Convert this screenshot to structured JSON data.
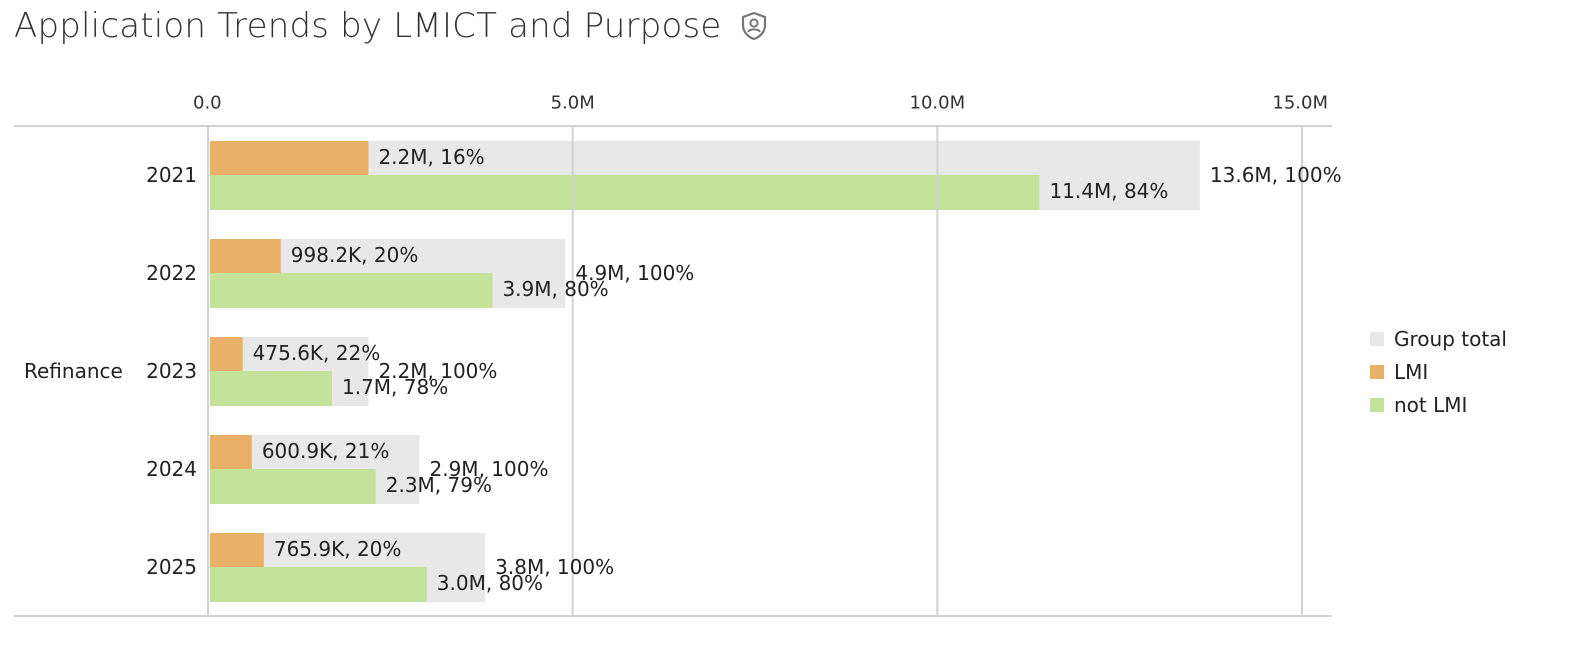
{
  "title": "Application Trends by LMICT and Purpose",
  "chart_data": {
    "type": "bar",
    "orientation": "horizontal",
    "group": "Refinance",
    "categories": [
      "2021",
      "2022",
      "2023",
      "2024",
      "2025"
    ],
    "xlim": [
      0,
      15000000
    ],
    "ticks": [
      0,
      5000000,
      10000000,
      15000000
    ],
    "tick_labels": [
      "0.0",
      "5.0M",
      "10.0M",
      "15.0M"
    ],
    "grid": true,
    "legend_position": "right",
    "series": [
      {
        "name": "Group total",
        "color": "#e8e8e8",
        "values": [
          13600000,
          4900000,
          2200000,
          2900000,
          3800000
        ],
        "labels": [
          "13.6M, 100%",
          "4.9M, 100%",
          "2.2M, 100%",
          "2.9M, 100%",
          "3.8M, 100%"
        ]
      },
      {
        "name": "LMI",
        "color": "#e9b067",
        "values": [
          2200000,
          998200,
          475600,
          600900,
          765900
        ],
        "labels": [
          "2.2M, 16%",
          "998.2K, 20%",
          "475.6K, 22%",
          "600.9K, 21%",
          "765.9K, 20%"
        ]
      },
      {
        "name": "not LMI",
        "color": "#c5e29b",
        "values": [
          11400000,
          3900000,
          1700000,
          2300000,
          3000000
        ],
        "labels": [
          "11.4M, 84%",
          "3.9M, 80%",
          "1.7M, 78%",
          "2.3M, 79%",
          "3.0M, 80%"
        ]
      }
    ]
  }
}
